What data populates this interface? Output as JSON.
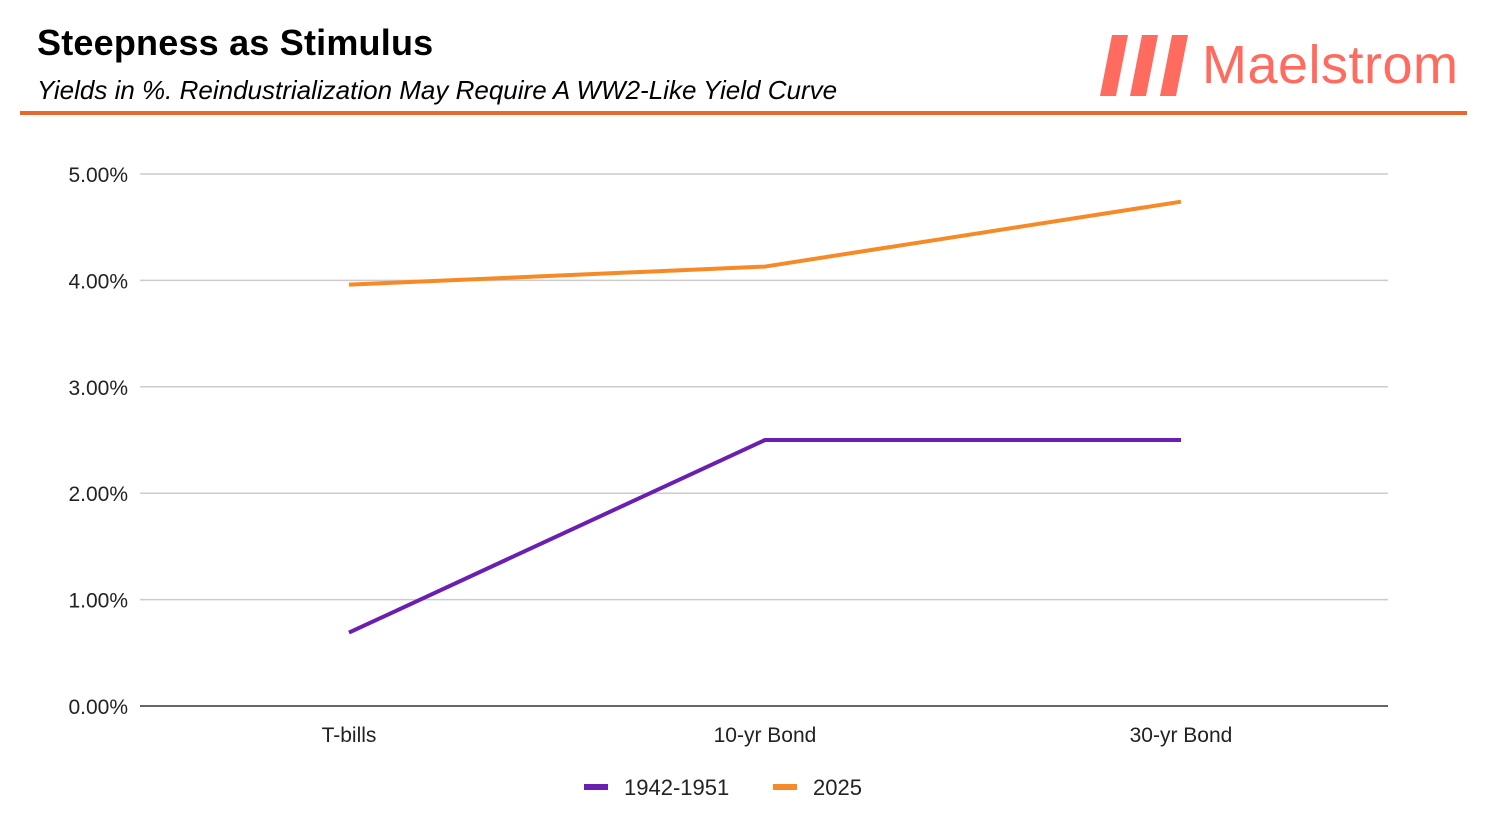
{
  "header": {
    "title": "Steepness as Stimulus",
    "subtitle": "Yields in %. Reindustrialization May Require A WW2-Like Yield Curve"
  },
  "brand": {
    "name": "Maelstrom",
    "logo_color": "#ff6b5f",
    "divider_color": "#e8692e"
  },
  "chart_data": {
    "type": "line",
    "categories": [
      "T-bills",
      "10-yr Bond",
      "30-yr Bond"
    ],
    "series": [
      {
        "name": "1942-1951",
        "values": [
          0.69,
          2.5,
          2.5
        ],
        "color": "#6a1fb0"
      },
      {
        "name": "2025",
        "values": [
          3.96,
          4.13,
          4.74
        ],
        "color": "#f58a26"
      }
    ],
    "ylim": [
      0,
      5
    ],
    "yticks": [
      0,
      1,
      2,
      3,
      4,
      5
    ],
    "ytick_labels": [
      "0.00%",
      "1.00%",
      "2.00%",
      "3.00%",
      "4.00%",
      "5.00%"
    ],
    "grid": true,
    "legend": "bottom-center",
    "xlabel": "",
    "ylabel": ""
  }
}
